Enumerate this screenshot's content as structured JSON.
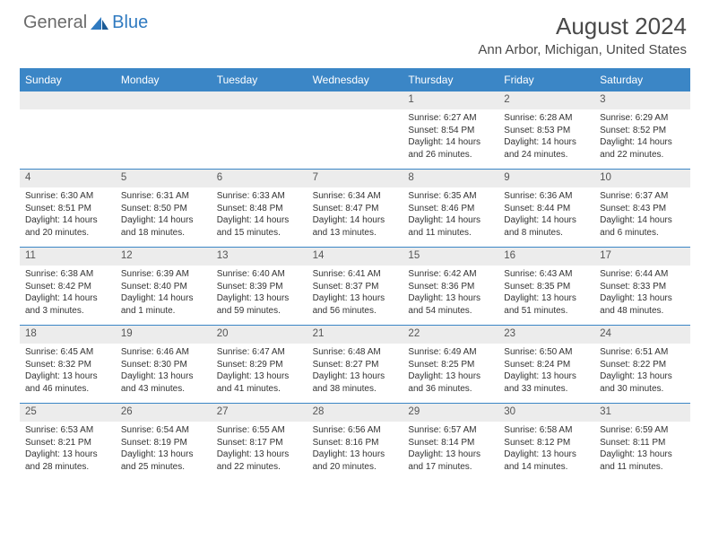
{
  "logo": {
    "text_general": "General",
    "text_blue": "Blue"
  },
  "title": "August 2024",
  "location": "Ann Arbor, Michigan, United States",
  "colors": {
    "header_bg": "#3b86c6",
    "header_text": "#ffffff",
    "date_band_bg": "#ececec",
    "text": "#333333",
    "logo_gray": "#6b6b6b",
    "logo_blue": "#2f7ac0"
  },
  "day_names": [
    "Sunday",
    "Monday",
    "Tuesday",
    "Wednesday",
    "Thursday",
    "Friday",
    "Saturday"
  ],
  "weeks": [
    [
      null,
      null,
      null,
      null,
      {
        "d": "1",
        "sr": "Sunrise: 6:27 AM",
        "ss": "Sunset: 8:54 PM",
        "dl": "Daylight: 14 hours and 26 minutes."
      },
      {
        "d": "2",
        "sr": "Sunrise: 6:28 AM",
        "ss": "Sunset: 8:53 PM",
        "dl": "Daylight: 14 hours and 24 minutes."
      },
      {
        "d": "3",
        "sr": "Sunrise: 6:29 AM",
        "ss": "Sunset: 8:52 PM",
        "dl": "Daylight: 14 hours and 22 minutes."
      }
    ],
    [
      {
        "d": "4",
        "sr": "Sunrise: 6:30 AM",
        "ss": "Sunset: 8:51 PM",
        "dl": "Daylight: 14 hours and 20 minutes."
      },
      {
        "d": "5",
        "sr": "Sunrise: 6:31 AM",
        "ss": "Sunset: 8:50 PM",
        "dl": "Daylight: 14 hours and 18 minutes."
      },
      {
        "d": "6",
        "sr": "Sunrise: 6:33 AM",
        "ss": "Sunset: 8:48 PM",
        "dl": "Daylight: 14 hours and 15 minutes."
      },
      {
        "d": "7",
        "sr": "Sunrise: 6:34 AM",
        "ss": "Sunset: 8:47 PM",
        "dl": "Daylight: 14 hours and 13 minutes."
      },
      {
        "d": "8",
        "sr": "Sunrise: 6:35 AM",
        "ss": "Sunset: 8:46 PM",
        "dl": "Daylight: 14 hours and 11 minutes."
      },
      {
        "d": "9",
        "sr": "Sunrise: 6:36 AM",
        "ss": "Sunset: 8:44 PM",
        "dl": "Daylight: 14 hours and 8 minutes."
      },
      {
        "d": "10",
        "sr": "Sunrise: 6:37 AM",
        "ss": "Sunset: 8:43 PM",
        "dl": "Daylight: 14 hours and 6 minutes."
      }
    ],
    [
      {
        "d": "11",
        "sr": "Sunrise: 6:38 AM",
        "ss": "Sunset: 8:42 PM",
        "dl": "Daylight: 14 hours and 3 minutes."
      },
      {
        "d": "12",
        "sr": "Sunrise: 6:39 AM",
        "ss": "Sunset: 8:40 PM",
        "dl": "Daylight: 14 hours and 1 minute."
      },
      {
        "d": "13",
        "sr": "Sunrise: 6:40 AM",
        "ss": "Sunset: 8:39 PM",
        "dl": "Daylight: 13 hours and 59 minutes."
      },
      {
        "d": "14",
        "sr": "Sunrise: 6:41 AM",
        "ss": "Sunset: 8:37 PM",
        "dl": "Daylight: 13 hours and 56 minutes."
      },
      {
        "d": "15",
        "sr": "Sunrise: 6:42 AM",
        "ss": "Sunset: 8:36 PM",
        "dl": "Daylight: 13 hours and 54 minutes."
      },
      {
        "d": "16",
        "sr": "Sunrise: 6:43 AM",
        "ss": "Sunset: 8:35 PM",
        "dl": "Daylight: 13 hours and 51 minutes."
      },
      {
        "d": "17",
        "sr": "Sunrise: 6:44 AM",
        "ss": "Sunset: 8:33 PM",
        "dl": "Daylight: 13 hours and 48 minutes."
      }
    ],
    [
      {
        "d": "18",
        "sr": "Sunrise: 6:45 AM",
        "ss": "Sunset: 8:32 PM",
        "dl": "Daylight: 13 hours and 46 minutes."
      },
      {
        "d": "19",
        "sr": "Sunrise: 6:46 AM",
        "ss": "Sunset: 8:30 PM",
        "dl": "Daylight: 13 hours and 43 minutes."
      },
      {
        "d": "20",
        "sr": "Sunrise: 6:47 AM",
        "ss": "Sunset: 8:29 PM",
        "dl": "Daylight: 13 hours and 41 minutes."
      },
      {
        "d": "21",
        "sr": "Sunrise: 6:48 AM",
        "ss": "Sunset: 8:27 PM",
        "dl": "Daylight: 13 hours and 38 minutes."
      },
      {
        "d": "22",
        "sr": "Sunrise: 6:49 AM",
        "ss": "Sunset: 8:25 PM",
        "dl": "Daylight: 13 hours and 36 minutes."
      },
      {
        "d": "23",
        "sr": "Sunrise: 6:50 AM",
        "ss": "Sunset: 8:24 PM",
        "dl": "Daylight: 13 hours and 33 minutes."
      },
      {
        "d": "24",
        "sr": "Sunrise: 6:51 AM",
        "ss": "Sunset: 8:22 PM",
        "dl": "Daylight: 13 hours and 30 minutes."
      }
    ],
    [
      {
        "d": "25",
        "sr": "Sunrise: 6:53 AM",
        "ss": "Sunset: 8:21 PM",
        "dl": "Daylight: 13 hours and 28 minutes."
      },
      {
        "d": "26",
        "sr": "Sunrise: 6:54 AM",
        "ss": "Sunset: 8:19 PM",
        "dl": "Daylight: 13 hours and 25 minutes."
      },
      {
        "d": "27",
        "sr": "Sunrise: 6:55 AM",
        "ss": "Sunset: 8:17 PM",
        "dl": "Daylight: 13 hours and 22 minutes."
      },
      {
        "d": "28",
        "sr": "Sunrise: 6:56 AM",
        "ss": "Sunset: 8:16 PM",
        "dl": "Daylight: 13 hours and 20 minutes."
      },
      {
        "d": "29",
        "sr": "Sunrise: 6:57 AM",
        "ss": "Sunset: 8:14 PM",
        "dl": "Daylight: 13 hours and 17 minutes."
      },
      {
        "d": "30",
        "sr": "Sunrise: 6:58 AM",
        "ss": "Sunset: 8:12 PM",
        "dl": "Daylight: 13 hours and 14 minutes."
      },
      {
        "d": "31",
        "sr": "Sunrise: 6:59 AM",
        "ss": "Sunset: 8:11 PM",
        "dl": "Daylight: 13 hours and 11 minutes."
      }
    ]
  ]
}
